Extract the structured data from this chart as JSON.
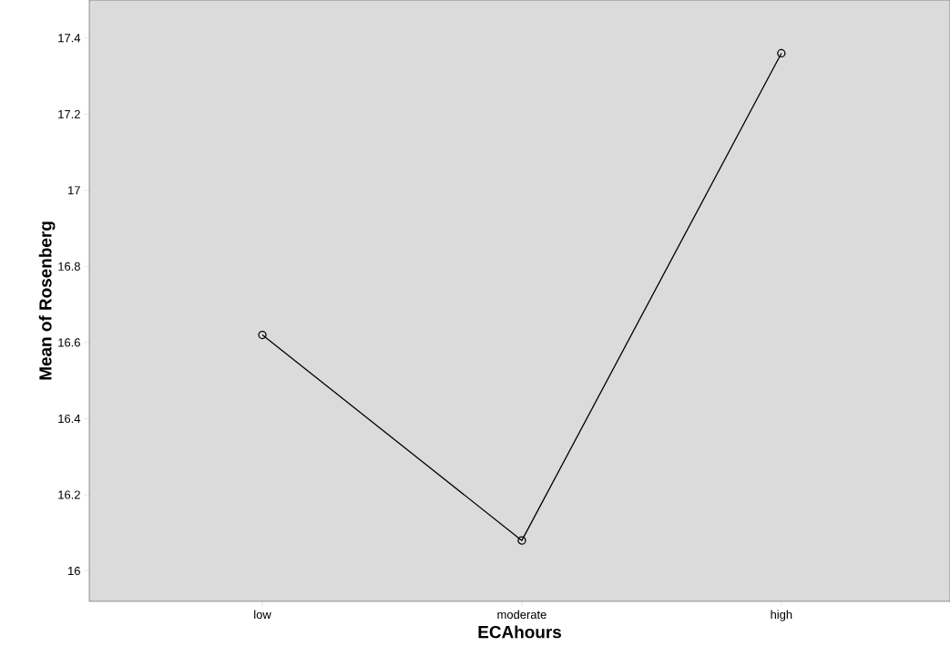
{
  "chart_data": {
    "type": "line",
    "xlabel": "ECAhours",
    "ylabel": "Mean of Rosenberg",
    "categories": [
      "low",
      "moderate",
      "high"
    ],
    "series": [
      {
        "color": "#000000",
        "values": [
          16.62,
          16.08,
          17.36
        ]
      }
    ],
    "ylim": [
      15.92,
      17.5
    ],
    "yticks": [
      16,
      16.2,
      16.4,
      16.6,
      16.8,
      17,
      17.2,
      17.4
    ],
    "marker": "circle",
    "line_style": "solid"
  }
}
